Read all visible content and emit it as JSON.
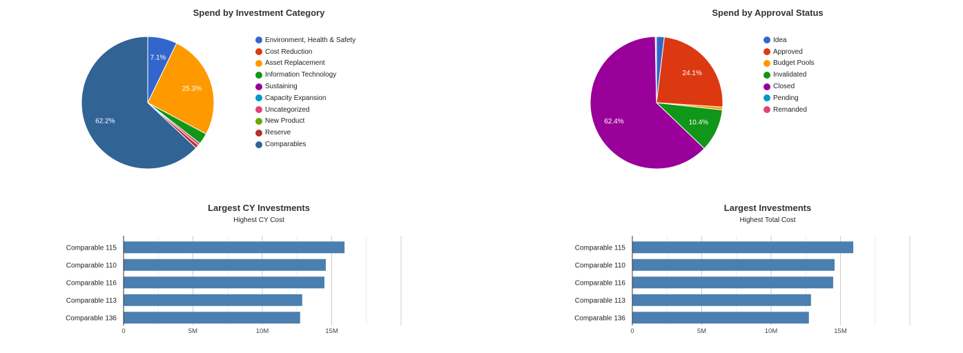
{
  "chart_data": [
    {
      "type": "pie",
      "title": "Spend by Investment Category",
      "legend_position": "right",
      "slices": [
        {
          "label": "Environment, Health & Safety",
          "value": 7.1,
          "color": "#3366cc",
          "data_label": "7.1%"
        },
        {
          "label": "Cost Reduction",
          "value": 0.0,
          "color": "#dc3912",
          "data_label": ""
        },
        {
          "label": "Asset Replacement",
          "value": 25.3,
          "color": "#ff9900",
          "data_label": "25.3%"
        },
        {
          "label": "Information Technology",
          "value": 2.7,
          "color": "#109618",
          "data_label": ""
        },
        {
          "label": "Sustaining",
          "value": 0.0,
          "color": "#990099",
          "data_label": ""
        },
        {
          "label": "Capacity Expansion",
          "value": 0.0,
          "color": "#0099c6",
          "data_label": ""
        },
        {
          "label": "Uncategorized",
          "value": 0.6,
          "color": "#dd4477",
          "data_label": ""
        },
        {
          "label": "New Product",
          "value": 0.0,
          "color": "#66aa00",
          "data_label": ""
        },
        {
          "label": "Reserve",
          "value": 0.8,
          "color": "#b82e2e",
          "data_label": ""
        },
        {
          "label": "Comparables",
          "value": 62.2,
          "color": "#316395",
          "data_label": "62.2%"
        }
      ]
    },
    {
      "type": "pie",
      "title": "Spend by Approval Status",
      "legend_position": "right",
      "slices": [
        {
          "label": "Idea",
          "value": 1.9,
          "color": "#3366cc",
          "data_label": ""
        },
        {
          "label": "Approved",
          "value": 24.1,
          "color": "#dc3912",
          "data_label": "24.1%"
        },
        {
          "label": "Budget Pools",
          "value": 0.7,
          "color": "#ff9900",
          "data_label": ""
        },
        {
          "label": "Invalidated",
          "value": 10.4,
          "color": "#109618",
          "data_label": "10.4%"
        },
        {
          "label": "Closed",
          "value": 62.4,
          "color": "#990099",
          "data_label": "62.4%"
        },
        {
          "label": "Pending",
          "value": 0.0,
          "color": "#0099c6",
          "data_label": ""
        },
        {
          "label": "Remanded",
          "value": 0.0,
          "color": "#dd4477",
          "data_label": ""
        }
      ],
      "extra_slices": [
        {
          "value": 0.3,
          "color": "#b8c2d0"
        }
      ]
    },
    {
      "type": "bar",
      "orientation": "horizontal",
      "title": "Largest CY Investments",
      "subtitle": "Highest CY Cost",
      "categories": [
        "Comparable 115",
        "Comparable 110",
        "Comparable 116",
        "Comparable 113",
        "Comparable 136"
      ],
      "values": [
        15900000,
        14550000,
        14450000,
        12850000,
        12700000
      ],
      "xlim": [
        0,
        20000000
      ],
      "xticks": [
        {
          "value": 0,
          "label": "0"
        },
        {
          "value": 5000000,
          "label": "5M"
        },
        {
          "value": 10000000,
          "label": "10M"
        },
        {
          "value": 15000000,
          "label": "15M"
        }
      ],
      "grid": true,
      "bar_color": "#4a7fb0"
    },
    {
      "type": "bar",
      "orientation": "horizontal",
      "title": "Largest Investments",
      "subtitle": "Highest Total Cost",
      "categories": [
        "Comparable 115",
        "Comparable 110",
        "Comparable 116",
        "Comparable 113",
        "Comparable 136"
      ],
      "values": [
        15900000,
        14550000,
        14450000,
        12850000,
        12700000
      ],
      "xlim": [
        0,
        20000000
      ],
      "xticks": [
        {
          "value": 0,
          "label": "0"
        },
        {
          "value": 5000000,
          "label": "5M"
        },
        {
          "value": 10000000,
          "label": "10M"
        },
        {
          "value": 15000000,
          "label": "15M"
        }
      ],
      "grid": true,
      "bar_color": "#4a7fb0"
    }
  ]
}
